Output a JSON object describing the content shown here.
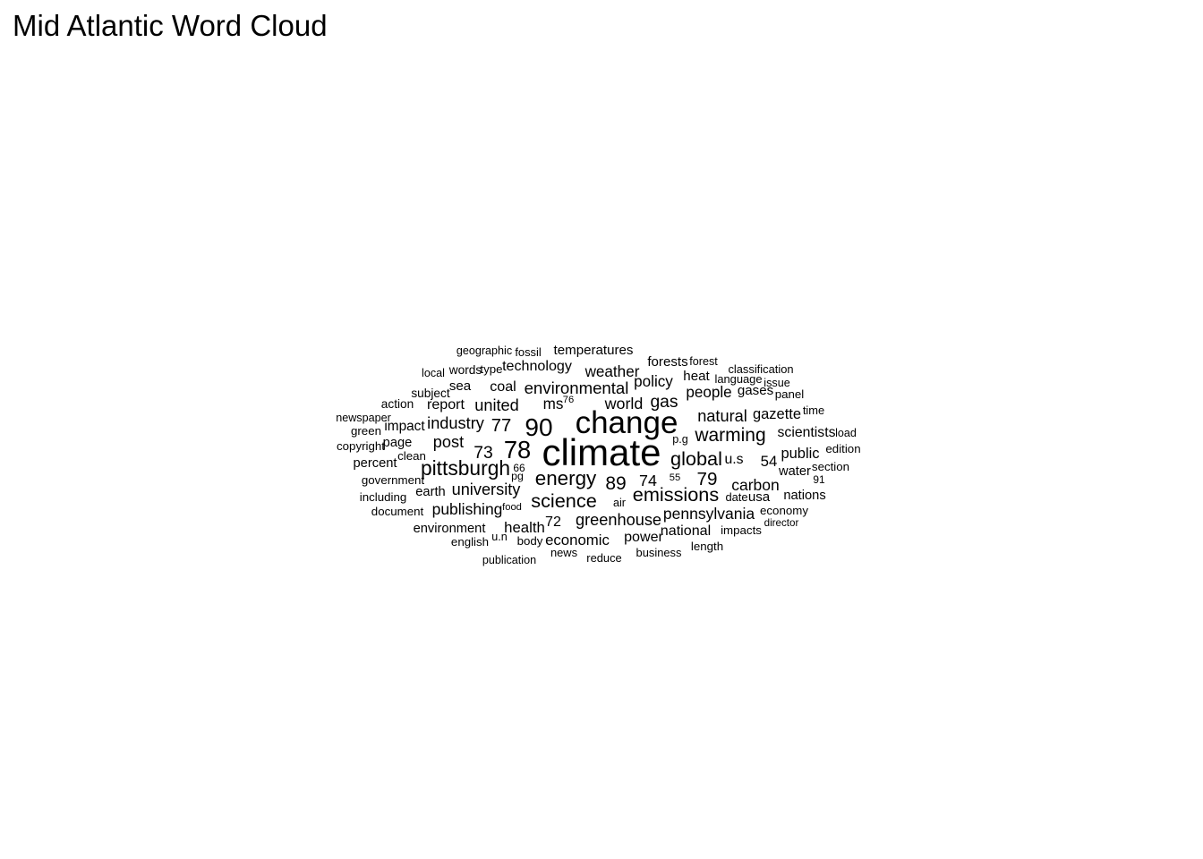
{
  "title": "Mid Atlantic Word Cloud",
  "chart_data": {
    "type": "wordcloud",
    "text_color": "#000000",
    "background": "#ffffff",
    "words": [
      {
        "text": "climate",
        "weight": 100
      },
      {
        "text": "change",
        "weight": 80
      },
      {
        "text": "90",
        "weight": 60
      },
      {
        "text": "78",
        "weight": 58
      },
      {
        "text": "pittsburgh",
        "weight": 45
      },
      {
        "text": "energy",
        "weight": 44
      },
      {
        "text": "science",
        "weight": 42
      },
      {
        "text": "emissions",
        "weight": 42
      },
      {
        "text": "global",
        "weight": 42
      },
      {
        "text": "warming",
        "weight": 40
      },
      {
        "text": "89",
        "weight": 40
      },
      {
        "text": "79",
        "weight": 39
      },
      {
        "text": "77",
        "weight": 38
      },
      {
        "text": "73",
        "weight": 35
      },
      {
        "text": "gas",
        "weight": 35
      },
      {
        "text": "environmental",
        "weight": 33
      },
      {
        "text": "industry",
        "weight": 32
      },
      {
        "text": "university",
        "weight": 32
      },
      {
        "text": "united",
        "weight": 32
      },
      {
        "text": "natural",
        "weight": 32
      },
      {
        "text": "post",
        "weight": 32
      },
      {
        "text": "greenhouse",
        "weight": 32
      },
      {
        "text": "74",
        "weight": 31
      },
      {
        "text": "world",
        "weight": 31
      },
      {
        "text": "publishing",
        "weight": 30
      },
      {
        "text": "pennsylvania",
        "weight": 30
      },
      {
        "text": "carbon",
        "weight": 30
      },
      {
        "text": "people",
        "weight": 29
      },
      {
        "text": "ms",
        "weight": 29
      },
      {
        "text": "policy",
        "weight": 29
      },
      {
        "text": "weather",
        "weight": 29
      },
      {
        "text": "health",
        "weight": 28
      },
      {
        "text": "economic",
        "weight": 28
      },
      {
        "text": "54",
        "weight": 28
      },
      {
        "text": "gazette",
        "weight": 27
      },
      {
        "text": "public",
        "weight": 27
      },
      {
        "text": "technology",
        "weight": 26
      },
      {
        "text": "coal",
        "weight": 26
      },
      {
        "text": "report",
        "weight": 26
      },
      {
        "text": "national",
        "weight": 26
      },
      {
        "text": "power",
        "weight": 26
      },
      {
        "text": "72",
        "weight": 26
      },
      {
        "text": "u.s",
        "weight": 25
      },
      {
        "text": "scientists",
        "weight": 25
      },
      {
        "text": "impact",
        "weight": 24
      },
      {
        "text": "temperatures",
        "weight": 23
      },
      {
        "text": "forests",
        "weight": 23
      },
      {
        "text": "sea",
        "weight": 23
      },
      {
        "text": "heat",
        "weight": 23
      },
      {
        "text": "gases",
        "weight": 23
      },
      {
        "text": "usa",
        "weight": 23
      },
      {
        "text": "page",
        "weight": 22
      },
      {
        "text": "percent",
        "weight": 22
      },
      {
        "text": "water",
        "weight": 22
      },
      {
        "text": "earth",
        "weight": 22
      },
      {
        "text": "environment",
        "weight": 22
      },
      {
        "text": "nations",
        "weight": 22
      },
      {
        "text": "words",
        "weight": 19
      },
      {
        "text": "type",
        "weight": 18
      },
      {
        "text": "action",
        "weight": 19
      },
      {
        "text": "subject",
        "weight": 19
      },
      {
        "text": "green",
        "weight": 18
      },
      {
        "text": "copyright",
        "weight": 18
      },
      {
        "text": "clean",
        "weight": 18
      },
      {
        "text": "government",
        "weight": 18
      },
      {
        "text": "including",
        "weight": 18
      },
      {
        "text": "document",
        "weight": 18
      },
      {
        "text": "english",
        "weight": 18
      },
      {
        "text": "body",
        "weight": 18
      },
      {
        "text": "news",
        "weight": 17
      },
      {
        "text": "reduce",
        "weight": 17
      },
      {
        "text": "business",
        "weight": 17
      },
      {
        "text": "length",
        "weight": 18
      },
      {
        "text": "impacts",
        "weight": 18
      },
      {
        "text": "economy",
        "weight": 18
      },
      {
        "text": "section",
        "weight": 18
      },
      {
        "text": "edition",
        "weight": 18
      },
      {
        "text": "time",
        "weight": 17
      },
      {
        "text": "panel",
        "weight": 18
      },
      {
        "text": "language",
        "weight": 17
      },
      {
        "text": "classification",
        "weight": 17
      },
      {
        "text": "fossil",
        "weight": 17
      },
      {
        "text": "geographic",
        "weight": 16
      },
      {
        "text": "local",
        "weight": 16
      },
      {
        "text": "newspaper",
        "weight": 16
      },
      {
        "text": "forest",
        "weight": 16
      },
      {
        "text": "issue",
        "weight": 16
      },
      {
        "text": "load",
        "weight": 16
      },
      {
        "text": "date",
        "weight": 17
      },
      {
        "text": "air",
        "weight": 16
      },
      {
        "text": "p.g",
        "weight": 16
      },
      {
        "text": "u.n",
        "weight": 16
      },
      {
        "text": "publication",
        "weight": 16
      },
      {
        "text": "director",
        "weight": 13
      },
      {
        "text": "pg",
        "weight": 15
      },
      {
        "text": "66",
        "weight": 14
      },
      {
        "text": "food",
        "weight": 12
      },
      {
        "text": "55",
        "weight": 12
      },
      {
        "text": "76",
        "weight": 12
      },
      {
        "text": "91",
        "weight": 14
      }
    ]
  }
}
